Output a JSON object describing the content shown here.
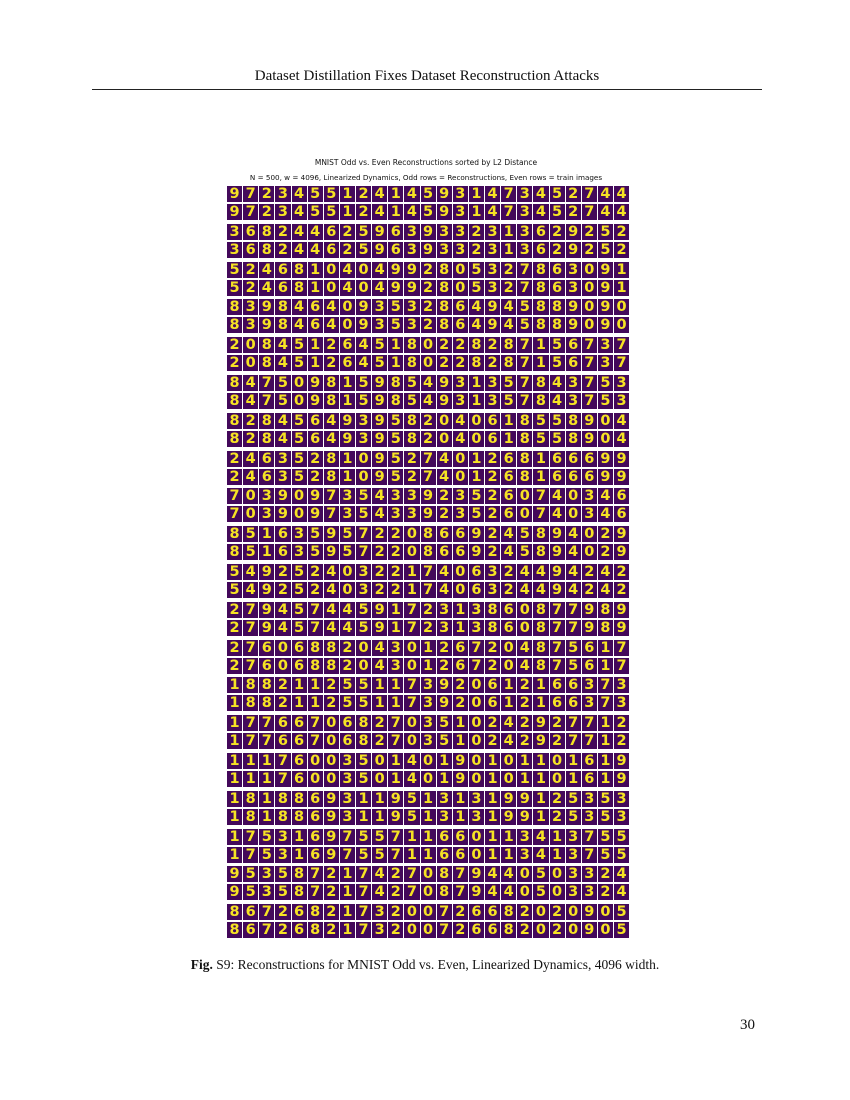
{
  "header": {
    "running_title": "Dataset Distillation Fixes Dataset Reconstruction Attacks"
  },
  "figure": {
    "title": "MNIST Odd vs. Even Reconstructions sorted by L2 Distance",
    "subtitle": "N = 500, w = 4096, Linearized Dynamics, Odd rows = Reconstructions, Even rows = train images",
    "colors": {
      "background": "#43085a",
      "digit": "#f6e324"
    },
    "pairs": [
      "9723455124145931473452744",
      "3682446259639332313629252",
      "5246810404992805327863091",
      "8398464093532864945889090",
      "2084512645180228287156737",
      "8475098159854931357843753",
      "8284564939582040618558904",
      "2463528109527401268166699",
      "7039097354339235260740346",
      "8516359572208669245894029",
      "5492524032217406324494242",
      "2794574459172313860877989",
      "2760688204301267204875617",
      "1882112551173920612166373",
      "1776670682703510242927712",
      "1117600350140190101101619",
      "1818869311951313199125353",
      "1753169755711660113413755",
      "9535872174270879440503324",
      "8672682173200726682020905"
    ]
  },
  "caption": {
    "label": "Fig.",
    "text": " S9: Reconstructions for MNIST Odd vs. Even, Linearized Dynamics, 4096 width."
  },
  "page_number": "30"
}
